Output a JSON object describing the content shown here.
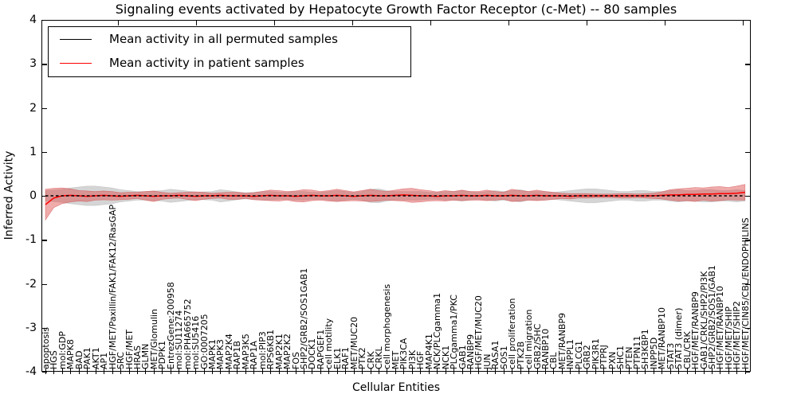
{
  "title": "Signaling events activated by Hepatocyte Growth Factor Receptor (c-Met) -- 80 samples",
  "axes": {
    "ylabel": "Inferred Activity",
    "xlabel": "Cellular Entities",
    "ytick_labels": [
      "4",
      "3",
      "2",
      "1",
      "0",
      "-1",
      "-2",
      "-3",
      "-4"
    ]
  },
  "legend": {
    "entries": [
      {
        "label": "Mean activity in all permuted samples",
        "color": "#000000"
      },
      {
        "label": "Mean activity in patient samples",
        "color": "#ff0000"
      }
    ]
  },
  "colors": {
    "patient_line": "#ff0000",
    "permuted_line": "#000000",
    "patient_band": "#dd4444",
    "permuted_band": "#888888"
  },
  "chart_data": {
    "type": "line",
    "title": "Signaling events activated by Hepatocyte Growth Factor Receptor (c-Met) -- 80 samples",
    "xlabel": "Cellular Entities",
    "ylabel": "Inferred Activity",
    "ylim": [
      -4,
      4
    ],
    "yticks": [
      4,
      3,
      2,
      1,
      0,
      -1,
      -2,
      -3,
      -4
    ],
    "grid": false,
    "legend_position": "upper left",
    "categories": [
      "apoptosis",
      "HGS",
      "mol:GDP",
      "MAPK8",
      "BAD",
      "PAK1",
      "AKT1",
      "AP1",
      "HGF/MET/Paxillin/FAK1/FAK12/RasGAP",
      "SRC",
      "HGF/MET",
      "HRAS",
      "GLMN",
      "MET/Glomulin",
      "PDPK1",
      "EntrezGene:200958",
      "mol:SU11274",
      "mol:PHA665752",
      "mol:SU5416",
      "GO:0007205",
      "MAPK1",
      "MAPK3",
      "MAP2K4",
      "RAP1B",
      "MAP3K5",
      "RAP1A",
      "mol:PIP3",
      "RPS6KB1",
      "MAP2K1",
      "MAP2K2",
      "FOS",
      "SHP2/GRB2/SOS1GAB1",
      "DOCK1",
      "RAPGEF1",
      "cell motility",
      "ELK1",
      "RAF1",
      "MET/MUC20",
      "PTK2",
      "CRK",
      "CRKL",
      "cell morphogenesis",
      "MET",
      "PIK3CA",
      "PI3K",
      "HGF",
      "MAP4K1",
      "NCK/PLCgamma1",
      "NCK1",
      "PLCgamma1/PKC",
      "GAB1",
      "RANBP9",
      "HGF/MET/MUC20",
      "JUN",
      "RASA1",
      "SOS1",
      "cell proliferation",
      "PTK2B",
      "cell migration",
      "GRB2/SHC",
      "RANBP10",
      "CBL",
      "MET/RANBP9",
      "INPPL1",
      "PLCG1",
      "GRB2",
      "PIK3R1",
      "PTPRJ",
      "PXN",
      "SHC1",
      "PTEN",
      "PTPN11",
      "SH3KBP1",
      "INPP5D",
      "MET/RANBP10",
      "STAT3",
      "STAT3 (dimer)",
      "CBL/CRK",
      "HGF/MET/RANBP9",
      "GAB1/CRKL/SHP2/PI3K",
      "SHP2/GRB2/SOS1/GAB1",
      "HGF/MET/RANBP10",
      "HGF/MET/SHIP",
      "HGF/MET/SHIP2",
      "HGF/MET/CIN85/CBL/ENDOPHILINS"
    ],
    "series": [
      {
        "name": "Mean activity in all permuted samples",
        "style": "dashed",
        "color": "#000000",
        "baseline_value": 0
      },
      {
        "name": "Mean activity in patient samples",
        "style": "solid",
        "color": "#ff0000",
        "values": [
          -0.2,
          -0.05,
          0.0,
          0.01,
          0.0,
          -0.01,
          0.0,
          0.01,
          0.0,
          -0.01,
          0.0,
          0.01,
          0.0,
          -0.01,
          0.0,
          0.0,
          0.01,
          0.0,
          -0.01,
          0.0,
          0.0,
          0.01,
          0.0,
          0.0,
          0.0,
          -0.01,
          0.0,
          0.01,
          0.0,
          0.0,
          -0.01,
          0.0,
          0.01,
          0.0,
          0.0,
          0.01,
          0.0,
          -0.01,
          0.0,
          0.01,
          0.0,
          0.0,
          0.01,
          0.02,
          0.01,
          0.0,
          0.0,
          -0.01,
          0.0,
          0.0,
          0.01,
          0.0,
          0.0,
          0.01,
          0.0,
          0.0,
          0.01,
          0.0,
          0.0,
          0.01,
          0.0,
          0.0,
          0.0,
          -0.01,
          0.0,
          0.0,
          0.0,
          0.0,
          0.0,
          0.0,
          0.0,
          0.0,
          0.0,
          0.0,
          0.01,
          0.02,
          0.02,
          0.03,
          0.03,
          0.04,
          0.04,
          0.05,
          0.05,
          0.06,
          0.08
        ]
      },
      {
        "name": "Std band of permuted samples",
        "type": "band",
        "color": "#888888",
        "center": 0,
        "half_widths": [
          0.12,
          0.13,
          0.15,
          0.18,
          0.2,
          0.22,
          0.22,
          0.2,
          0.18,
          0.14,
          0.12,
          0.1,
          0.1,
          0.11,
          0.12,
          0.15,
          0.13,
          0.11,
          0.09,
          0.09,
          0.1,
          0.14,
          0.12,
          0.09,
          0.07,
          0.08,
          0.1,
          0.1,
          0.08,
          0.08,
          0.1,
          0.1,
          0.08,
          0.08,
          0.1,
          0.12,
          0.1,
          0.08,
          0.1,
          0.15,
          0.16,
          0.12,
          0.1,
          0.1,
          0.1,
          0.1,
          0.08,
          0.08,
          0.1,
          0.1,
          0.12,
          0.1,
          0.08,
          0.1,
          0.12,
          0.1,
          0.12,
          0.14,
          0.1,
          0.1,
          0.1,
          0.08,
          0.1,
          0.12,
          0.14,
          0.16,
          0.16,
          0.14,
          0.12,
          0.1,
          0.1,
          0.12,
          0.12,
          0.1,
          0.1,
          0.12,
          0.14,
          0.12,
          0.12,
          0.14,
          0.14,
          0.12,
          0.12,
          0.14,
          0.12
        ]
      },
      {
        "name": "Std band of patient samples",
        "type": "band",
        "color": "#dd4444",
        "center": "patient_mean",
        "half_widths": [
          0.35,
          0.22,
          0.18,
          0.15,
          0.12,
          0.12,
          0.1,
          0.1,
          0.1,
          0.08,
          0.08,
          0.07,
          0.1,
          0.12,
          0.08,
          0.06,
          0.06,
          0.08,
          0.1,
          0.08,
          0.06,
          0.06,
          0.08,
          0.08,
          0.06,
          0.08,
          0.1,
          0.12,
          0.12,
          0.1,
          0.12,
          0.14,
          0.12,
          0.1,
          0.12,
          0.14,
          0.12,
          0.1,
          0.12,
          0.14,
          0.12,
          0.1,
          0.12,
          0.14,
          0.16,
          0.14,
          0.12,
          0.1,
          0.12,
          0.1,
          0.12,
          0.1,
          0.1,
          0.12,
          0.1,
          0.08,
          0.14,
          0.12,
          0.1,
          0.12,
          0.1,
          0.08,
          0.06,
          0.06,
          0.05,
          0.05,
          0.04,
          0.04,
          0.04,
          0.05,
          0.05,
          0.04,
          0.05,
          0.06,
          0.08,
          0.12,
          0.14,
          0.14,
          0.16,
          0.14,
          0.16,
          0.16,
          0.14,
          0.16,
          0.18
        ]
      }
    ]
  }
}
